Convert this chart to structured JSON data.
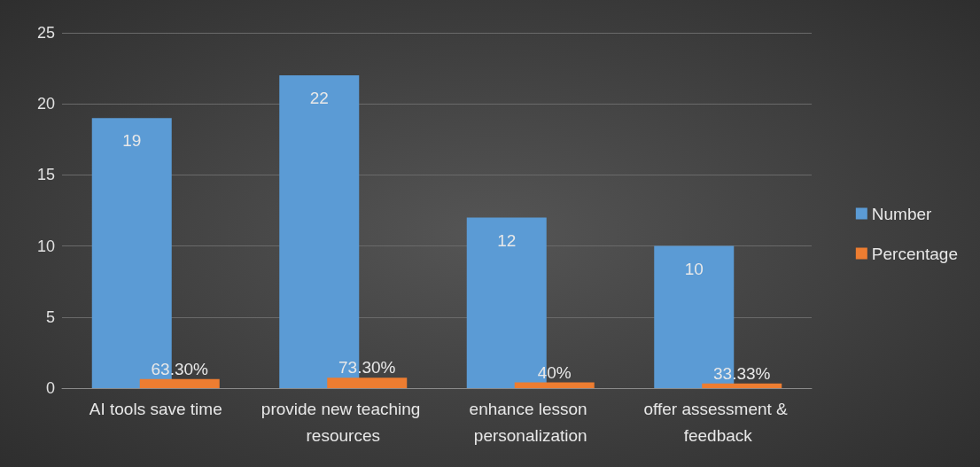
{
  "chart_data": {
    "type": "bar",
    "categories": [
      "AI tools save time",
      "provide new teaching resources",
      "enhance lesson personalization",
      "offer assessment & feedback"
    ],
    "series": [
      {
        "name": "Number",
        "color": "#5b9bd5",
        "values": [
          19,
          22,
          12,
          10
        ],
        "value_labels": [
          "19",
          "22",
          "12",
          "10"
        ]
      },
      {
        "name": "Percentage",
        "color": "#ed7d31",
        "values": [
          0.633,
          0.733,
          0.4,
          0.3333
        ],
        "value_labels": [
          "63.30%",
          "73.30%",
          "40%",
          "33.33%"
        ]
      }
    ],
    "ylim": [
      0,
      25
    ],
    "yticks": [
      0,
      5,
      10,
      15,
      20,
      25
    ],
    "grid": "y",
    "legend": "right"
  }
}
